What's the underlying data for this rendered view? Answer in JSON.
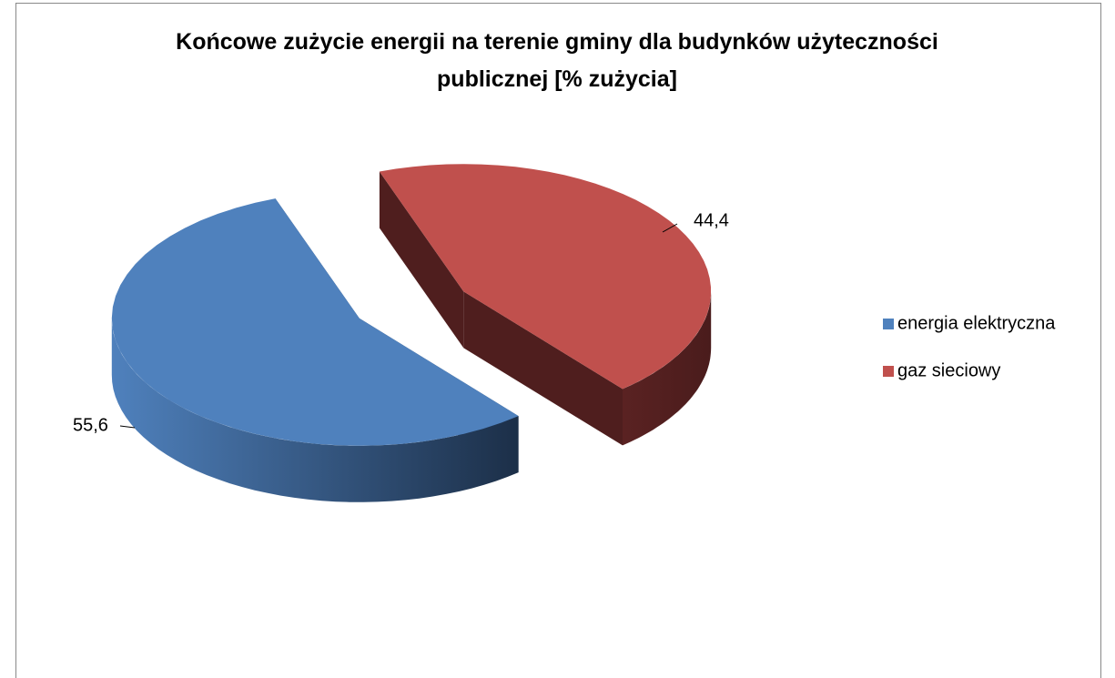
{
  "chart_data": {
    "type": "pie3d",
    "title": "Końcowe zużycie energii na terenie gminy dla budynków użyteczności publicznej [% zużycia]",
    "categories": [
      "energia elektryczna",
      "gaz sieciowy"
    ],
    "values": [
      55.6,
      44.4
    ],
    "value_labels": [
      "55,6",
      "44,4"
    ],
    "colors": [
      "#4f81bd",
      "#c0504d"
    ],
    "legend": "right"
  }
}
